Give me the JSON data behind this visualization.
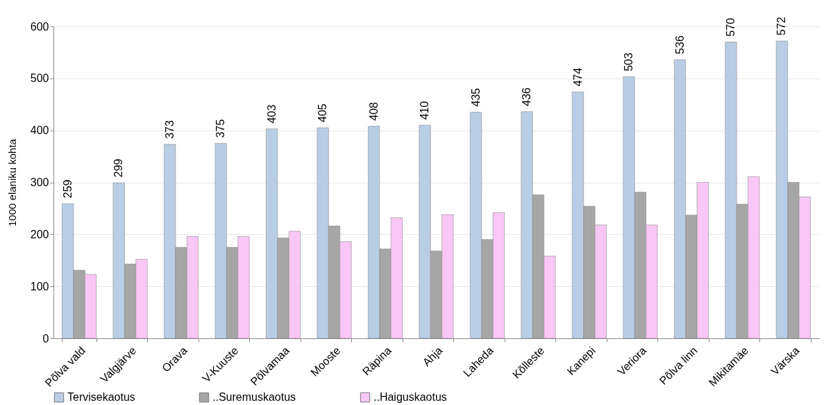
{
  "chart_data": {
    "type": "bar",
    "ylabel": "1000 elaniku kohta",
    "categories": [
      "Põlva vald",
      "Valgjärve",
      "Orava",
      "V-Kuuste",
      "Põlvamaa",
      "Mooste",
      "Räpina",
      "Ahja",
      "Laheda",
      "Kõlleste",
      "Kanepi",
      "Veriora",
      "Põlva linn",
      "Mikitamäe",
      "Värska"
    ],
    "series": [
      {
        "name": "Tervisekaotus",
        "color": "#b9cde5",
        "values": [
          259,
          299,
          373,
          375,
          403,
          405,
          408,
          410,
          435,
          436,
          474,
          503,
          536,
          570,
          572
        ],
        "value_labels": [
          "259",
          "299",
          "373",
          "375",
          "403",
          "405",
          "408",
          "410",
          "435",
          "436",
          "474",
          "503",
          "536",
          "570",
          "572"
        ]
      },
      {
        "name": "..Suremuskaotus",
        "color": "#a6a6a6",
        "values": [
          131,
          143,
          175,
          175,
          193,
          216,
          172,
          168,
          190,
          276,
          254,
          281,
          237,
          258,
          300
        ]
      },
      {
        "name": "..Haiguskaotus",
        "color": "#f9c7f5",
        "values": [
          123,
          152,
          196,
          196,
          206,
          186,
          232,
          238,
          242,
          158,
          218,
          218,
          300,
          311,
          272
        ]
      }
    ],
    "ylim": [
      0,
      600
    ],
    "yticks": [
      0,
      100,
      200,
      300,
      400,
      500,
      600
    ],
    "grid": "y",
    "legend": "bottom"
  }
}
